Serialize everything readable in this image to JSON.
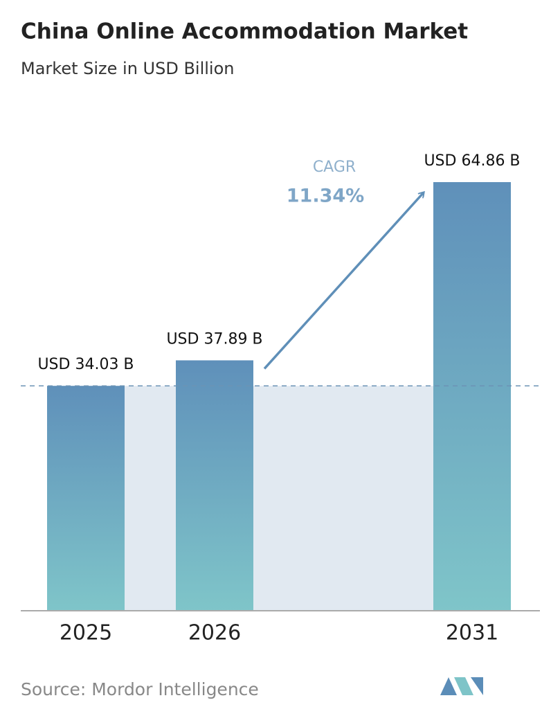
{
  "chart_data": {
    "type": "bar",
    "title": "China Online Accommodation Market",
    "subtitle": "Market Size in USD Billion",
    "categories": [
      "2025",
      "2026",
      "2031"
    ],
    "values": [
      34.03,
      37.89,
      64.86
    ],
    "value_labels": [
      "USD 34.03 B",
      "USD 37.89 B",
      "USD 64.86 B"
    ],
    "annotations": {
      "label": "CAGR",
      "value": "11.34%"
    },
    "source": "Source: Mordor Intelligence"
  }
}
